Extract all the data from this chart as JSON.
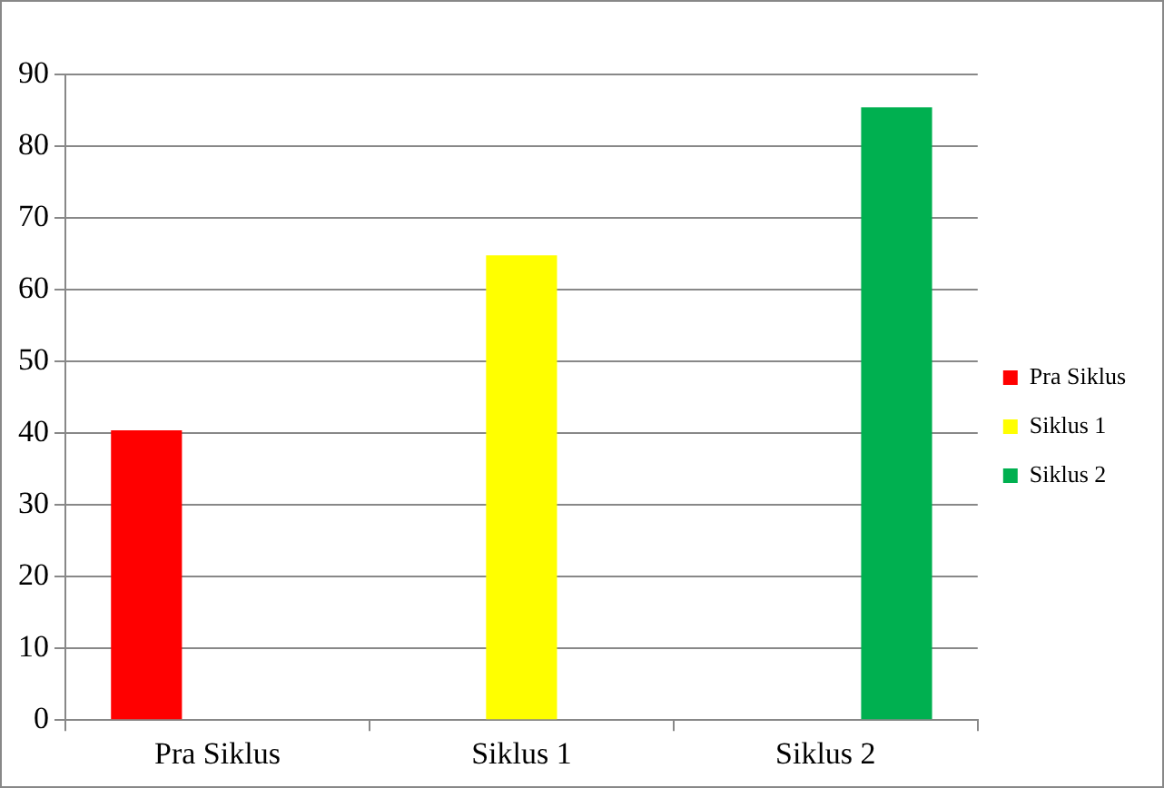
{
  "chart_data": {
    "type": "bar",
    "categories": [
      "Pra Siklus",
      "Siklus 1",
      "Siklus 2"
    ],
    "series": [
      {
        "name": "Pra Siklus",
        "color": "#ff0000",
        "values": [
          40.4,
          null,
          null
        ]
      },
      {
        "name": "Siklus 1",
        "color": "#ffff00",
        "values": [
          null,
          64.8,
          null
        ]
      },
      {
        "name": "Siklus 2",
        "color": "#00b050",
        "values": [
          null,
          null,
          85.4
        ]
      }
    ],
    "ylim": [
      0,
      90
    ],
    "yticks": [
      0,
      10,
      20,
      30,
      40,
      50,
      60,
      70,
      80,
      90
    ],
    "grid": "y",
    "legend": "right"
  }
}
